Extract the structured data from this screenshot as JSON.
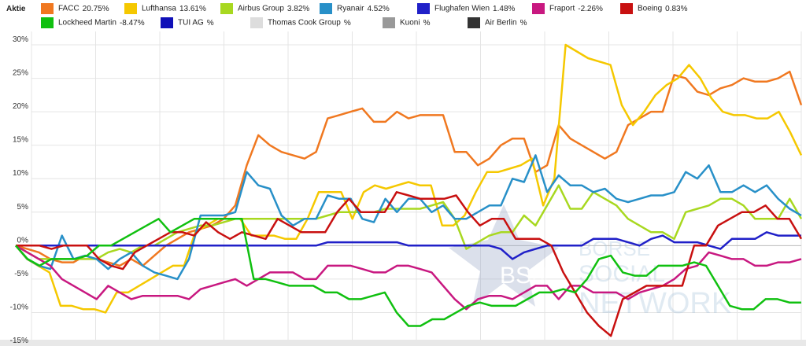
{
  "legend": {
    "heading": "Aktie",
    "items": [
      {
        "label": "FACC",
        "change": "20.75%",
        "color": "#f07820"
      },
      {
        "label": "Lufthansa",
        "change": "13.61%",
        "color": "#f5c800"
      },
      {
        "label": "Airbus Group",
        "change": "3.82%",
        "color": "#a8d820"
      },
      {
        "label": "Ryanair",
        "change": "4.52%",
        "color": "#2890c8"
      },
      {
        "label": "Flughafen Wien",
        "change": "1.48%",
        "color": "#2020c8"
      },
      {
        "label": "Fraport",
        "change": "-2.26%",
        "color": "#c81880"
      },
      {
        "label": "Boeing",
        "change": "0.83%",
        "color": "#c81010"
      },
      {
        "label": "Lockheed Martin",
        "change": "-8.47%",
        "color": "#10c010"
      },
      {
        "label": "TUI AG",
        "change": "%",
        "color": "#1010b8"
      },
      {
        "label": "Thomas Cook Group",
        "change": "%",
        "color": "#dddddd"
      },
      {
        "label": "Kuoni",
        "change": "%",
        "color": "#999999"
      },
      {
        "label": "Air Berlin",
        "change": "%",
        "color": "#333333"
      }
    ]
  },
  "watermark": {
    "badge": "BSN",
    "lines": [
      "BÖRSE",
      "SOCIAL",
      "NETWORK"
    ]
  },
  "chart_data": {
    "type": "line",
    "x_count": 54,
    "ylim": [
      -15,
      32
    ],
    "yticks": [
      -15,
      -10,
      -5,
      0,
      5,
      10,
      15,
      20,
      25,
      30
    ],
    "ytick_labels": [
      "-15%",
      "-10%",
      "-5%",
      "0%",
      "5%",
      "10%",
      "15%",
      "20%",
      "25%",
      "30%"
    ],
    "grid": true,
    "series": [
      {
        "name": "FACC",
        "color": "#f07820",
        "values": [
          0,
          -0.5,
          -1,
          -2,
          -2.5,
          -2.5,
          -1.5,
          -2,
          -2.5,
          -3,
          -2,
          -3,
          -1.5,
          0,
          1,
          2,
          2.5,
          3,
          4,
          6,
          12,
          16.5,
          15,
          14,
          13.5,
          13,
          14,
          19,
          19.5,
          20,
          20.5,
          18.5,
          18.5,
          20,
          19,
          19.5,
          19.5,
          19.5,
          14,
          14,
          12,
          13,
          15,
          16,
          16,
          11,
          12,
          18,
          16,
          15,
          14,
          13,
          14,
          18,
          19,
          20,
          20,
          25.5,
          25,
          23,
          22.5,
          23.5,
          24,
          25,
          24.5,
          24.5,
          25,
          26,
          21
        ]
      },
      {
        "name": "Lufthansa",
        "color": "#f5c800",
        "values": [
          0,
          -2,
          -3,
          -4,
          -9,
          -9,
          -9.5,
          -9.5,
          -10,
          -7,
          -7,
          -6,
          -5,
          -4,
          -3,
          -3,
          2,
          3,
          4,
          4,
          4,
          1.5,
          1.5,
          1.5,
          1,
          1,
          4,
          8,
          8,
          8,
          4,
          8,
          9,
          8.5,
          9,
          9.5,
          9,
          9,
          3,
          3,
          4.5,
          8,
          11,
          11,
          11.5,
          12,
          13,
          6,
          10,
          30,
          29,
          28,
          27.5,
          27,
          21,
          18,
          20,
          22.5,
          24,
          25,
          27,
          25,
          22,
          20,
          19.5,
          19.5,
          19,
          19,
          20,
          17,
          13.5
        ]
      },
      {
        "name": "Airbus Group",
        "color": "#a8d820",
        "values": [
          0,
          -1,
          -2,
          -2,
          -2,
          -2,
          -2,
          -2,
          -1,
          -0.5,
          -1,
          0,
          0,
          1,
          2,
          2.5,
          3,
          3,
          3.5,
          4,
          4,
          4,
          4,
          4,
          4,
          4,
          4,
          4.5,
          5,
          5,
          5,
          5,
          5.5,
          5.5,
          5.5,
          5.5,
          6,
          6.5,
          4,
          -0.5,
          0.5,
          1.5,
          2,
          2,
          4.5,
          3,
          6,
          9,
          5.5,
          5.5,
          8,
          7,
          6,
          4,
          3,
          2,
          2,
          1,
          5,
          5.5,
          6,
          7,
          7,
          6,
          4,
          4,
          4,
          7,
          4
        ]
      },
      {
        "name": "Ryanair",
        "color": "#2890c8",
        "values": [
          0,
          -2,
          -3,
          -3.5,
          1.5,
          -2,
          -1.5,
          -2,
          -3.5,
          -2,
          -1,
          -3,
          -4,
          -4.5,
          -5,
          -2,
          4.5,
          4.5,
          4.5,
          5,
          11,
          9,
          8.5,
          4.5,
          3,
          4,
          4,
          7.5,
          7,
          7,
          4,
          3.5,
          7,
          5,
          7,
          7,
          5,
          6,
          4,
          4,
          5,
          6,
          6,
          10,
          9.5,
          13.5,
          8,
          10.5,
          9,
          9,
          8,
          8.5,
          7,
          6.5,
          7,
          7.5,
          7.5,
          8,
          11,
          10,
          12,
          8,
          8,
          9,
          8,
          9,
          7,
          5.5,
          4.5
        ]
      },
      {
        "name": "Flughafen Wien",
        "color": "#2020c8",
        "values": [
          0,
          0,
          0,
          0,
          0,
          0,
          0,
          0,
          0,
          0,
          0,
          0,
          0,
          0,
          0,
          0,
          0,
          0,
          0,
          0,
          0,
          0,
          0,
          0,
          0,
          0,
          0,
          0.5,
          0.5,
          0.5,
          0.5,
          0.5,
          0.5,
          0.5,
          0,
          0,
          0,
          0,
          0,
          0,
          0,
          0,
          -0.5,
          -2,
          -1,
          -0.5,
          0,
          0,
          0,
          0,
          1,
          1,
          1,
          0.5,
          0,
          1,
          1.5,
          0.5,
          0.5,
          0.5,
          0,
          -0.5,
          1,
          1,
          1,
          2,
          1.5,
          1.5,
          1.5
        ]
      },
      {
        "name": "Fraport",
        "color": "#c81880",
        "values": [
          0,
          -1,
          -2,
          -3,
          -5,
          -6,
          -7,
          -8,
          -6,
          -7,
          -8,
          -7.5,
          -7.5,
          -7.5,
          -7.5,
          -8,
          -6.5,
          -6,
          -5.5,
          -5,
          -6,
          -5,
          -4,
          -4,
          -4,
          -5,
          -5,
          -3,
          -3,
          -3,
          -3.5,
          -4,
          -4,
          -3,
          -3,
          -3.5,
          -4,
          -6,
          -8,
          -9.5,
          -8,
          -7.5,
          -7.5,
          -8,
          -7,
          -6,
          -6,
          -8,
          -6,
          -6,
          -7,
          -7,
          -7,
          -8,
          -7,
          -6.5,
          -6,
          -5,
          -3.5,
          -3,
          -1,
          -1.5,
          -2,
          -2,
          -3,
          -3,
          -2.5,
          -2.5,
          -2
        ]
      },
      {
        "name": "Boeing",
        "color": "#c81010",
        "values": [
          0,
          0,
          0,
          -0.5,
          0,
          0,
          0,
          -2,
          -3,
          -3.5,
          -1,
          0,
          1,
          2,
          2,
          1.5,
          3.5,
          2,
          1,
          2,
          1.5,
          1,
          4,
          3,
          2,
          2,
          2,
          5,
          7,
          5,
          5,
          5,
          8,
          7.5,
          7,
          7,
          7,
          7.5,
          5,
          3,
          4,
          4,
          1,
          1,
          1,
          0,
          -4,
          -7,
          -10,
          -12,
          -13.5,
          -8,
          -7,
          -6,
          -6,
          -6,
          -6,
          0,
          0,
          3,
          4,
          5,
          5,
          6,
          4,
          4,
          1
        ]
      },
      {
        "name": "Lockheed Martin",
        "color": "#10c010",
        "values": [
          0,
          -2,
          -3,
          -2,
          -2,
          -2,
          -1.5,
          0,
          0,
          1,
          2,
          3,
          4,
          2,
          3,
          4,
          4,
          4,
          4,
          4,
          -5,
          -5,
          -5.5,
          -6,
          -6,
          -6,
          -7,
          -7,
          -8,
          -8,
          -7.5,
          -7,
          -10,
          -12,
          -12,
          -11,
          -11,
          -10,
          -9,
          -8.5,
          -9,
          -9,
          -9,
          -8,
          -7,
          -7,
          -6.5,
          -7,
          -5,
          -2,
          -1.5,
          -4,
          -4.5,
          -4.5,
          -3,
          -3,
          -3,
          -2.5,
          -3,
          -6,
          -9,
          -9.5,
          -9.5,
          -8,
          -8,
          -8.5,
          -8.5
        ]
      }
    ]
  }
}
